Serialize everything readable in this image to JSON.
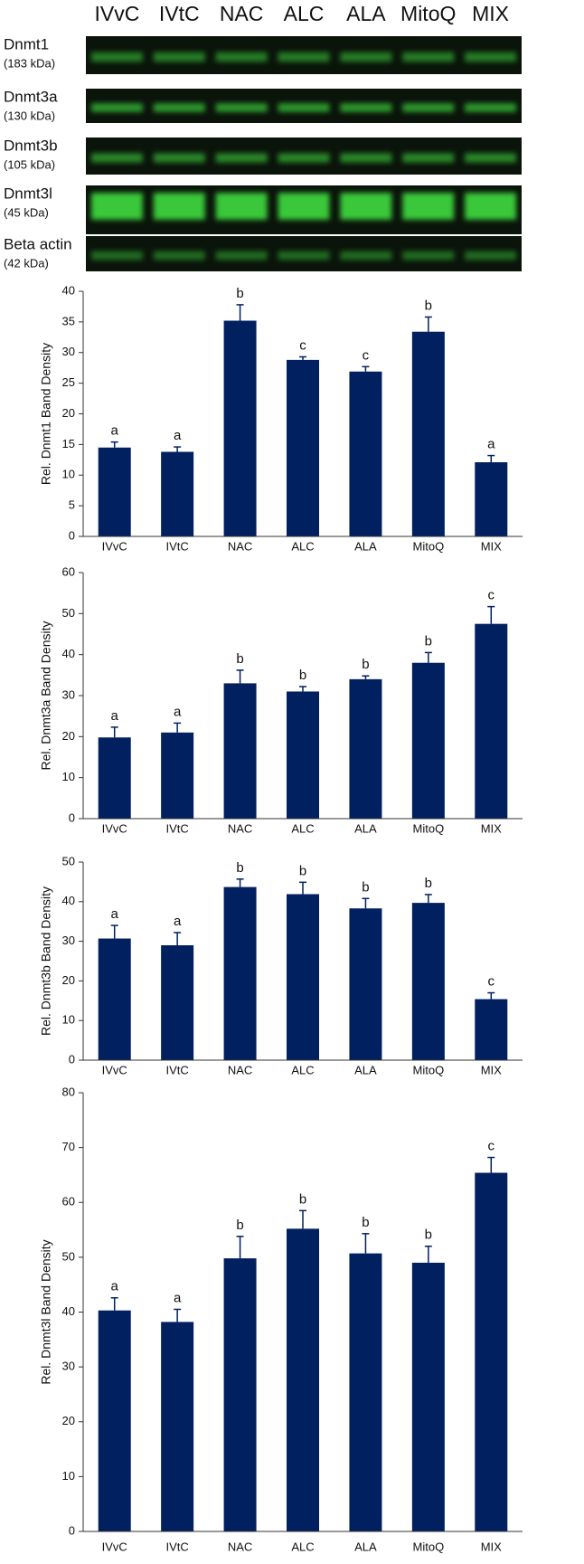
{
  "blot": {
    "lanes": [
      "IVvC",
      "IVtC",
      "NAC",
      "ALC",
      "ALA",
      "MitoQ",
      "MIX"
    ],
    "rows": [
      {
        "name": "Dnmt1",
        "size": "(183 kDa)"
      },
      {
        "name": "Dnmt3a",
        "size": "(130 kDa)"
      },
      {
        "name": "Dnmt3b",
        "size": "(105 kDa)"
      },
      {
        "name": "Dnmt3l",
        "size": "(45 kDa)"
      },
      {
        "name": "Beta actin",
        "size": "(42 kDa)"
      }
    ]
  },
  "chart_data": [
    {
      "type": "bar",
      "ylabel": "Rel. Dnmt1 Band Density",
      "categories": [
        "IVvC",
        "IVtC",
        "NAC",
        "ALC",
        "ALA",
        "MitoQ",
        "MIX"
      ],
      "values": [
        14.5,
        13.8,
        35.2,
        28.8,
        26.9,
        33.4,
        12.1
      ],
      "errors": [
        0.9,
        0.8,
        2.6,
        0.5,
        0.8,
        2.4,
        1.1
      ],
      "significance": [
        "a",
        "a",
        "b",
        "c",
        "c",
        "b",
        "a"
      ],
      "color": "#002060",
      "ylim": [
        0,
        40
      ],
      "yticks": [
        0,
        5,
        10,
        15,
        20,
        25,
        30,
        35,
        40
      ]
    },
    {
      "type": "bar",
      "ylabel": "Rel. Dnmt3a Band Density",
      "categories": [
        "IVvC",
        "IVtC",
        "NAC",
        "ALC",
        "ALA",
        "MitoQ",
        "MIX"
      ],
      "values": [
        19.8,
        21,
        33,
        31,
        34,
        38,
        47.5
      ],
      "errors": [
        2.5,
        2.3,
        3.2,
        1.2,
        0.8,
        2.5,
        4.2
      ],
      "significance": [
        "a",
        "a",
        "b",
        "b",
        "b",
        "b",
        "c"
      ],
      "color": "#002060",
      "ylim": [
        0,
        60
      ],
      "yticks": [
        0,
        10,
        20,
        30,
        40,
        50,
        60
      ]
    },
    {
      "type": "bar",
      "ylabel": "Rel. Dnmt3b Band Density",
      "categories": [
        "IVvC",
        "IVtC",
        "NAC",
        "ALC",
        "ALA",
        "MitoQ",
        "MIX"
      ],
      "values": [
        30.7,
        29,
        43.7,
        41.9,
        38.3,
        39.7,
        15.4
      ],
      "errors": [
        3.3,
        3.2,
        2,
        3,
        2.5,
        2.1,
        1.6
      ],
      "significance": [
        "a",
        "a",
        "b",
        "b",
        "b",
        "b",
        "c"
      ],
      "color": "#002060",
      "ylim": [
        0,
        50
      ],
      "yticks": [
        0,
        10,
        20,
        30,
        40,
        50
      ]
    },
    {
      "type": "bar",
      "ylabel": "Rel. Dnmt3l Band Density",
      "categories": [
        "IVvC",
        "IVtC",
        "NAC",
        "ALC",
        "ALA",
        "MitoQ",
        "MIX"
      ],
      "values": [
        40.3,
        38.2,
        49.8,
        55.2,
        50.7,
        49,
        65.4
      ],
      "errors": [
        2.3,
        2.3,
        4,
        3.3,
        3.6,
        3,
        2.8
      ],
      "significance": [
        "a",
        "a",
        "b",
        "b",
        "b",
        "b",
        "c"
      ],
      "color": "#002060",
      "ylim": [
        0,
        80
      ],
      "yticks": [
        0,
        10,
        20,
        30,
        40,
        50,
        60,
        70,
        80
      ]
    }
  ]
}
